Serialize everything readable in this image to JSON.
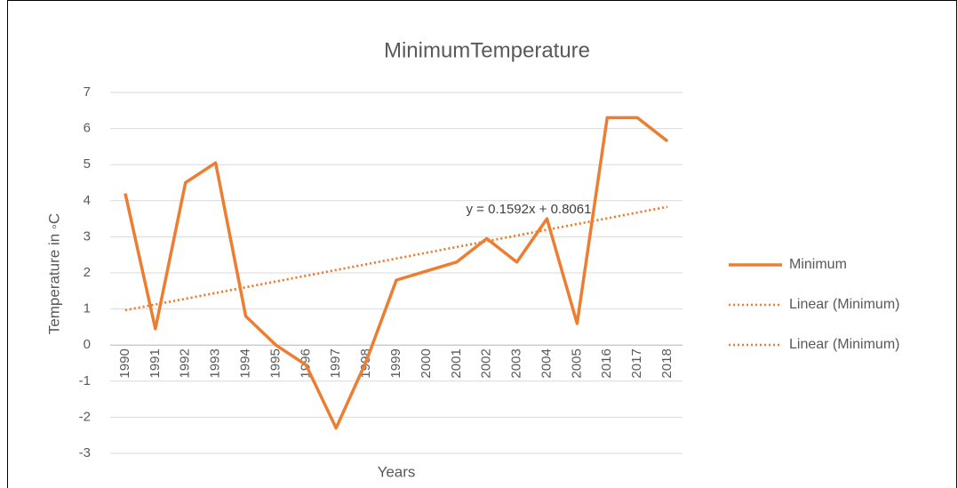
{
  "chart_data": {
    "type": "line",
    "title": "MinimumTemperature",
    "x_label": "Years",
    "y_label": "Temperature in ◦C",
    "categories": [
      "1990",
      "1991",
      "1992",
      "1993",
      "1994",
      "1995",
      "1996",
      "1997",
      "1998",
      "1999",
      "2000",
      "2001",
      "2002",
      "2003",
      "2004",
      "2005",
      "2016",
      "2017",
      "2018"
    ],
    "series": [
      {
        "name": "Minimum",
        "color": "#ed7d31",
        "values": [
          4.2,
          0.45,
          4.5,
          5.05,
          0.8,
          0.0,
          -0.55,
          -2.3,
          -0.45,
          1.8,
          2.05,
          2.3,
          2.95,
          2.3,
          3.5,
          0.6,
          6.3,
          6.3,
          5.65
        ]
      }
    ],
    "trendlines": [
      {
        "name": "Linear (Minimum)",
        "color": "#ed7d31",
        "slope": 0.1592,
        "intercept": 0.8061,
        "equation": "y = 0.1592x + 0.8061"
      },
      {
        "name": "Linear (Minimum)",
        "color": "#ed7d31",
        "slope": 0.1592,
        "intercept": 0.8061
      }
    ],
    "ylim": [
      -3,
      7
    ],
    "yticks": [
      -3,
      -2,
      -1,
      0,
      1,
      2,
      3,
      4,
      5,
      6,
      7
    ],
    "grid": true,
    "legend": "right"
  }
}
